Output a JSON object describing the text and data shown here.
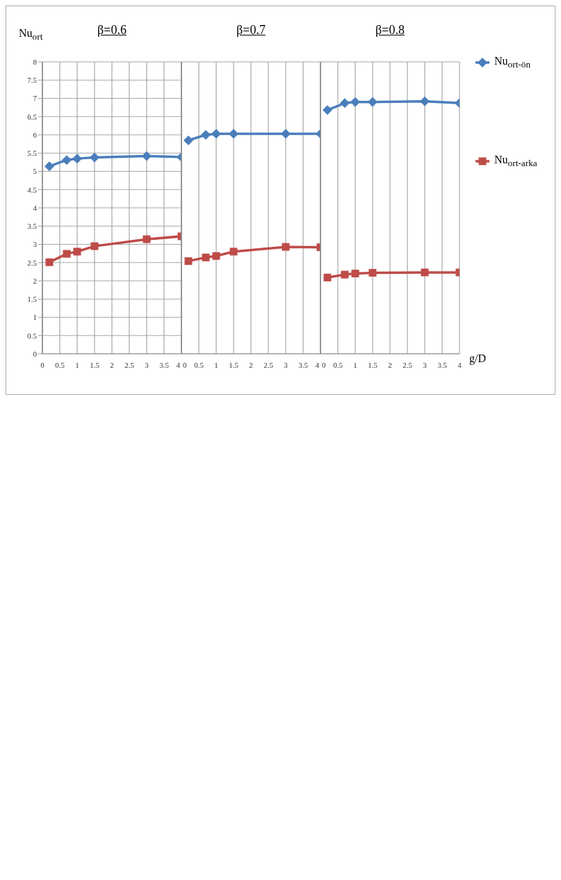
{
  "chart_data": [
    {
      "type": "line",
      "title": "β=0.6",
      "ylabel": "Nu$_{ort}$",
      "x": [
        0.2,
        0.7,
        1,
        1.5,
        3,
        4
      ],
      "xlim": [
        0,
        4
      ],
      "xticks": [
        0,
        0.5,
        1,
        1.5,
        2,
        2.5,
        3,
        3.5,
        4
      ],
      "ylim": [
        0,
        8
      ],
      "yticks": [
        0,
        0.5,
        1,
        1.5,
        2,
        2.5,
        3,
        3.5,
        4,
        4.5,
        5,
        5.5,
        6,
        6.5,
        7,
        7.5,
        8
      ],
      "grid": true,
      "series": [
        {
          "color": "#4a7ebb",
          "marker": "diamond",
          "values": [
            5.14,
            5.31,
            5.35,
            5.38,
            5.42,
            5.39
          ]
        },
        {
          "color": "#be4b48",
          "marker": "square",
          "values": [
            2.51,
            2.74,
            2.8,
            2.95,
            3.14,
            3.22
          ]
        }
      ]
    },
    {
      "type": "line",
      "title": "β=0.7",
      "x": [
        0.2,
        0.7,
        1,
        1.5,
        3,
        4
      ],
      "xlim": [
        0,
        4
      ],
      "xticks": [
        0,
        0.5,
        1,
        1.5,
        2,
        2.5,
        3,
        3.5,
        4
      ],
      "ylim": [
        0,
        8
      ],
      "yticks": [
        0,
        0.5,
        1,
        1.5,
        2,
        2.5,
        3,
        3.5,
        4,
        4.5,
        5,
        5.5,
        6,
        6.5,
        7,
        7.5,
        8
      ],
      "grid": true,
      "tick_labels": "x",
      "series": [
        {
          "color": "#4a7ebb",
          "marker": "diamond",
          "values": [
            5.85,
            6.0,
            6.03,
            6.03,
            6.03,
            6.03
          ]
        },
        {
          "color": "#be4b48",
          "marker": "square",
          "values": [
            2.54,
            2.64,
            2.68,
            2.8,
            2.93,
            2.92
          ]
        }
      ]
    },
    {
      "type": "line",
      "title": "β=0.8",
      "xlabel": "g/D",
      "x": [
        0.2,
        0.7,
        1,
        1.5,
        3,
        4
      ],
      "xlim": [
        0,
        4
      ],
      "xticks": [
        0,
        0.5,
        1,
        1.5,
        2,
        2.5,
        3,
        3.5,
        4
      ],
      "ylim": [
        0,
        8
      ],
      "yticks": [
        0,
        0.5,
        1,
        1.5,
        2,
        2.5,
        3,
        3.5,
        4,
        4.5,
        5,
        5.5,
        6,
        6.5,
        7,
        7.5,
        8
      ],
      "grid": true,
      "tick_labels": "x",
      "legend": "right",
      "series": [
        {
          "name": "Nu$_{ort-ön}$",
          "color": "#4a7ebb",
          "marker": "diamond",
          "values": [
            6.68,
            6.87,
            6.9,
            6.9,
            6.92,
            6.87
          ]
        },
        {
          "name": "Nu$_{ort-arka}$",
          "color": "#be4b48",
          "marker": "square",
          "values": [
            2.09,
            2.17,
            2.2,
            2.22,
            2.23,
            2.23
          ]
        }
      ]
    }
  ]
}
